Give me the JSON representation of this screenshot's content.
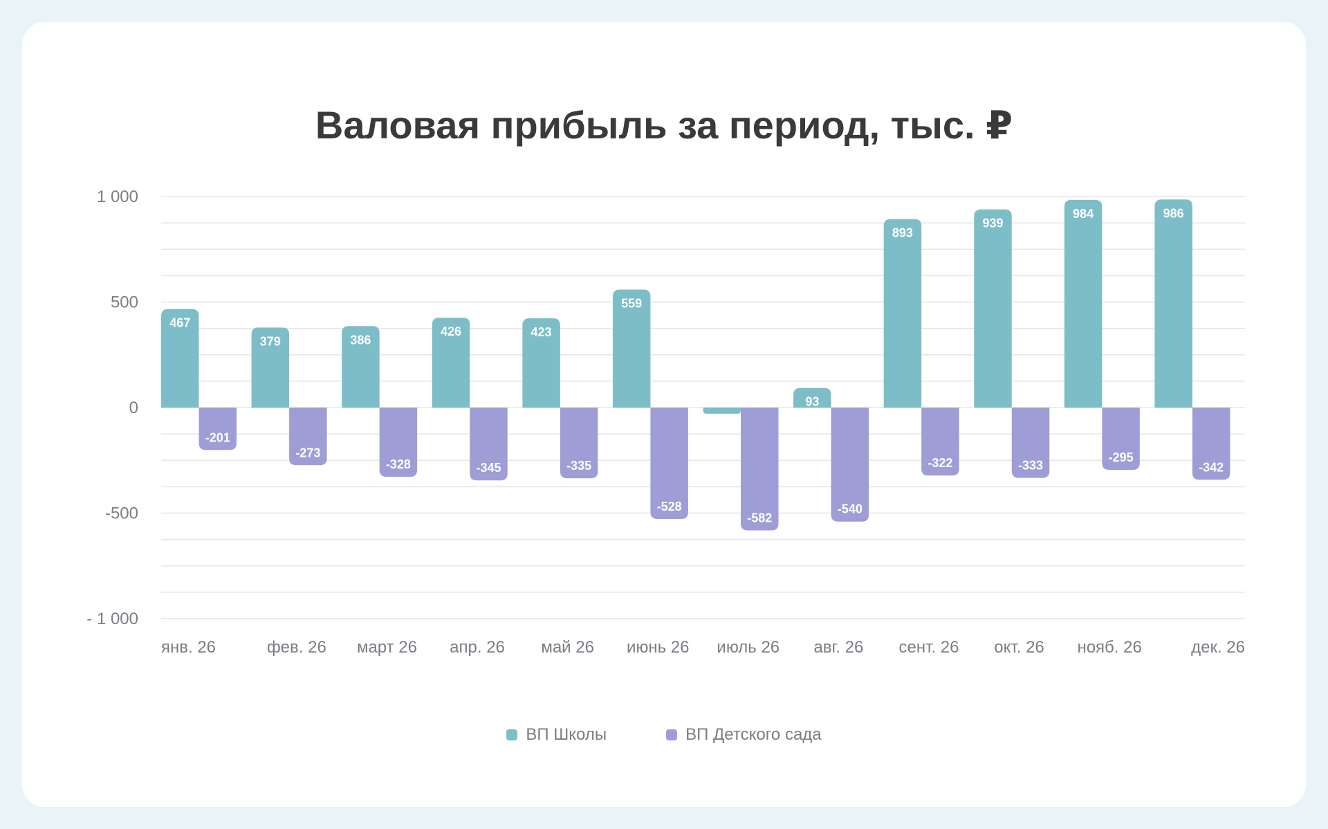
{
  "chart_data": {
    "type": "bar",
    "title": "Валовая прибыль за период, тыс. ₽",
    "categories": [
      "янв. 26",
      "фев. 26",
      "март 26",
      "апр. 26",
      "май 26",
      "июнь 26",
      "июль 26",
      "авг. 26",
      "сент. 26",
      "окт. 26",
      "нояб. 26",
      "дек. 26"
    ],
    "series": [
      {
        "name": "ВП Школы",
        "color": "#7dbdc8",
        "values": [
          467,
          379,
          386,
          426,
          423,
          559,
          -29,
          93,
          893,
          939,
          984,
          986
        ]
      },
      {
        "name": "ВП Детского сада",
        "color": "#9f9dd5",
        "values": [
          -201,
          -273,
          -328,
          -345,
          -335,
          -528,
          -582,
          -540,
          -322,
          -333,
          -295,
          -342
        ]
      }
    ],
    "ylim": [
      -1000,
      1000
    ],
    "yticks": [
      1000,
      500,
      0,
      -500,
      -1000
    ],
    "ytick_labels": [
      "1 000",
      "500",
      "0",
      "-500",
      "- 1 000"
    ],
    "grid": true,
    "legend": "bottom"
  }
}
